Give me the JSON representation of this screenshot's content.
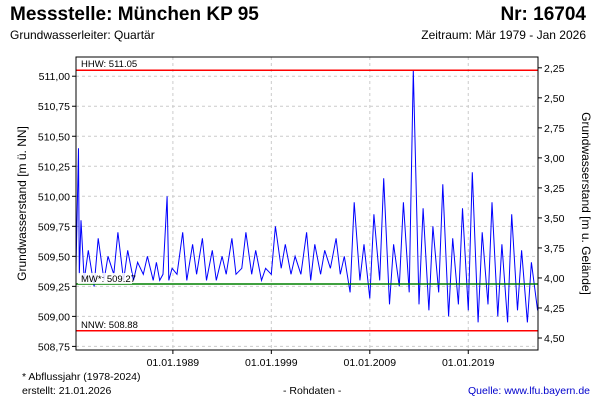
{
  "header": {
    "title": "Messstelle: München KP 95",
    "number": "Nr: 16704",
    "aquifer": "Grundwasserleiter: Quartär",
    "period": "Zeitraum: Mär 1979 - Jan 2026"
  },
  "footer": {
    "note": "* Abflussjahr (1978-2024)",
    "created": "erstellt:  21.01.2026",
    "rawdata": "- Rohdaten -",
    "source_label": "Quelle: ",
    "source_url": "www.lfu.bayern.de"
  },
  "colors": {
    "series": "#0000ff",
    "hhw": "#ff0000",
    "nnw": "#ff0000",
    "mw": "#008000",
    "grid": "#cccccc"
  },
  "chart_data": {
    "type": "line",
    "ylabel": "Grundwasserstand [m ü. NN]",
    "y2label": "Grundwasserstand [m u. Gelände]",
    "ylim": [
      508.72,
      511.16
    ],
    "xlim": [
      "1979-03-01",
      "2026-01-31"
    ],
    "yticks": [
      {
        "value": 508.75,
        "label": "508,75"
      },
      {
        "value": 509.0,
        "label": "509,00"
      },
      {
        "value": 509.25,
        "label": "509,25"
      },
      {
        "value": 509.5,
        "label": "509,50"
      },
      {
        "value": 509.75,
        "label": "509,75"
      },
      {
        "value": 510.0,
        "label": "510,00"
      },
      {
        "value": 510.25,
        "label": "510,25"
      },
      {
        "value": 510.5,
        "label": "510,50"
      },
      {
        "value": 510.75,
        "label": "510,75"
      },
      {
        "value": 511.0,
        "label": "511,00"
      }
    ],
    "y2ticks": [
      {
        "value": 511.07,
        "label": "2,25"
      },
      {
        "value": 510.82,
        "label": "2,50"
      },
      {
        "value": 510.57,
        "label": "2,75"
      },
      {
        "value": 510.32,
        "label": "3,00"
      },
      {
        "value": 510.07,
        "label": "3,25"
      },
      {
        "value": 509.82,
        "label": "3,50"
      },
      {
        "value": 509.57,
        "label": "3,75"
      },
      {
        "value": 509.32,
        "label": "4,00"
      },
      {
        "value": 509.07,
        "label": "4,25"
      },
      {
        "value": 508.82,
        "label": "4,50"
      }
    ],
    "xticks": [
      {
        "value": "1989-01-01",
        "label": "01.01.1989"
      },
      {
        "value": "1999-01-01",
        "label": "01.01.1999"
      },
      {
        "value": "2009-01-01",
        "label": "01.01.2009"
      },
      {
        "value": "2019-01-01",
        "label": "01.01.2019"
      }
    ],
    "reference_lines": [
      {
        "name": "HHW",
        "label": "HHW: 511.05",
        "value": 511.05
      },
      {
        "name": "MW",
        "label": "MW*: 509.27",
        "value": 509.27
      },
      {
        "name": "NNW",
        "label": "NNW: 508.88",
        "value": 508.88
      }
    ],
    "series": [
      {
        "x": [
          "1979-03-01",
          "1979-06-01",
          "1979-07-01",
          "1979-09-01",
          "1980-01-01",
          "1980-06-01",
          "1981-01-01",
          "1981-06-01",
          "1982-01-01",
          "1982-06-01",
          "1983-01-01",
          "1983-06-01",
          "1984-01-01",
          "1984-06-01",
          "1985-01-01",
          "1985-06-01",
          "1986-01-01",
          "1986-06-01",
          "1987-01-01",
          "1987-05-01",
          "1987-09-01",
          "1988-01-01",
          "1988-06-01",
          "1988-08-01",
          "1988-12-01",
          "1989-06-01",
          "1990-01-01",
          "1990-06-01",
          "1991-01-01",
          "1991-06-01",
          "1992-01-01",
          "1992-06-01",
          "1993-01-01",
          "1993-06-01",
          "1994-01-01",
          "1994-06-01",
          "1995-01-01",
          "1995-06-01",
          "1996-01-01",
          "1996-06-01",
          "1997-01-01",
          "1997-06-01",
          "1998-01-01",
          "1998-06-01",
          "1999-01-01",
          "1999-06-01",
          "2000-01-01",
          "2000-06-01",
          "2001-01-01",
          "2001-06-01",
          "2002-01-01",
          "2002-08-01",
          "2003-01-01",
          "2003-06-01",
          "2004-01-01",
          "2004-06-01",
          "2005-01-01",
          "2005-08-01",
          "2006-01-01",
          "2006-06-01",
          "2007-01-01",
          "2007-06-01",
          "2008-01-01",
          "2008-06-01",
          "2009-01-01",
          "2009-06-01",
          "2010-01-01",
          "2010-06-01",
          "2011-01-01",
          "2011-06-01",
          "2012-01-01",
          "2012-06-01",
          "2013-01-01",
          "2013-06-01",
          "2014-01-01",
          "2014-06-01",
          "2015-01-01",
          "2015-06-01",
          "2016-01-01",
          "2016-06-01",
          "2017-01-01",
          "2017-06-01",
          "2018-01-01",
          "2018-06-01",
          "2019-01-01",
          "2019-06-01",
          "2020-01-01",
          "2020-06-01",
          "2021-01-01",
          "2021-06-01",
          "2022-01-01",
          "2022-06-01",
          "2023-01-01",
          "2023-06-01",
          "2024-01-01",
          "2024-06-01",
          "2025-01-01",
          "2025-06-01",
          "2026-01-15"
        ],
        "values": [
          509.4,
          510.4,
          509.35,
          509.8,
          509.3,
          509.55,
          509.25,
          509.65,
          509.3,
          509.5,
          509.35,
          509.7,
          509.3,
          509.55,
          509.3,
          509.45,
          509.35,
          509.5,
          509.3,
          509.45,
          509.3,
          509.35,
          510.0,
          509.3,
          509.4,
          509.35,
          509.7,
          509.3,
          509.6,
          509.35,
          509.65,
          509.3,
          509.55,
          509.3,
          509.5,
          509.35,
          509.65,
          509.35,
          509.4,
          509.7,
          509.35,
          509.55,
          509.3,
          509.4,
          509.35,
          509.75,
          509.4,
          509.6,
          509.35,
          509.5,
          509.35,
          509.7,
          509.3,
          509.6,
          509.35,
          509.55,
          509.4,
          509.65,
          509.35,
          509.5,
          509.2,
          509.95,
          509.3,
          509.6,
          509.15,
          509.85,
          509.3,
          510.15,
          509.1,
          509.6,
          509.25,
          509.95,
          509.2,
          511.05,
          509.1,
          509.9,
          509.05,
          509.75,
          509.2,
          510.1,
          509.0,
          509.65,
          509.1,
          509.9,
          509.05,
          510.2,
          508.95,
          509.7,
          509.1,
          509.95,
          509.0,
          509.6,
          508.95,
          509.85,
          509.05,
          509.55,
          508.95,
          509.45,
          509.05
        ]
      }
    ]
  }
}
